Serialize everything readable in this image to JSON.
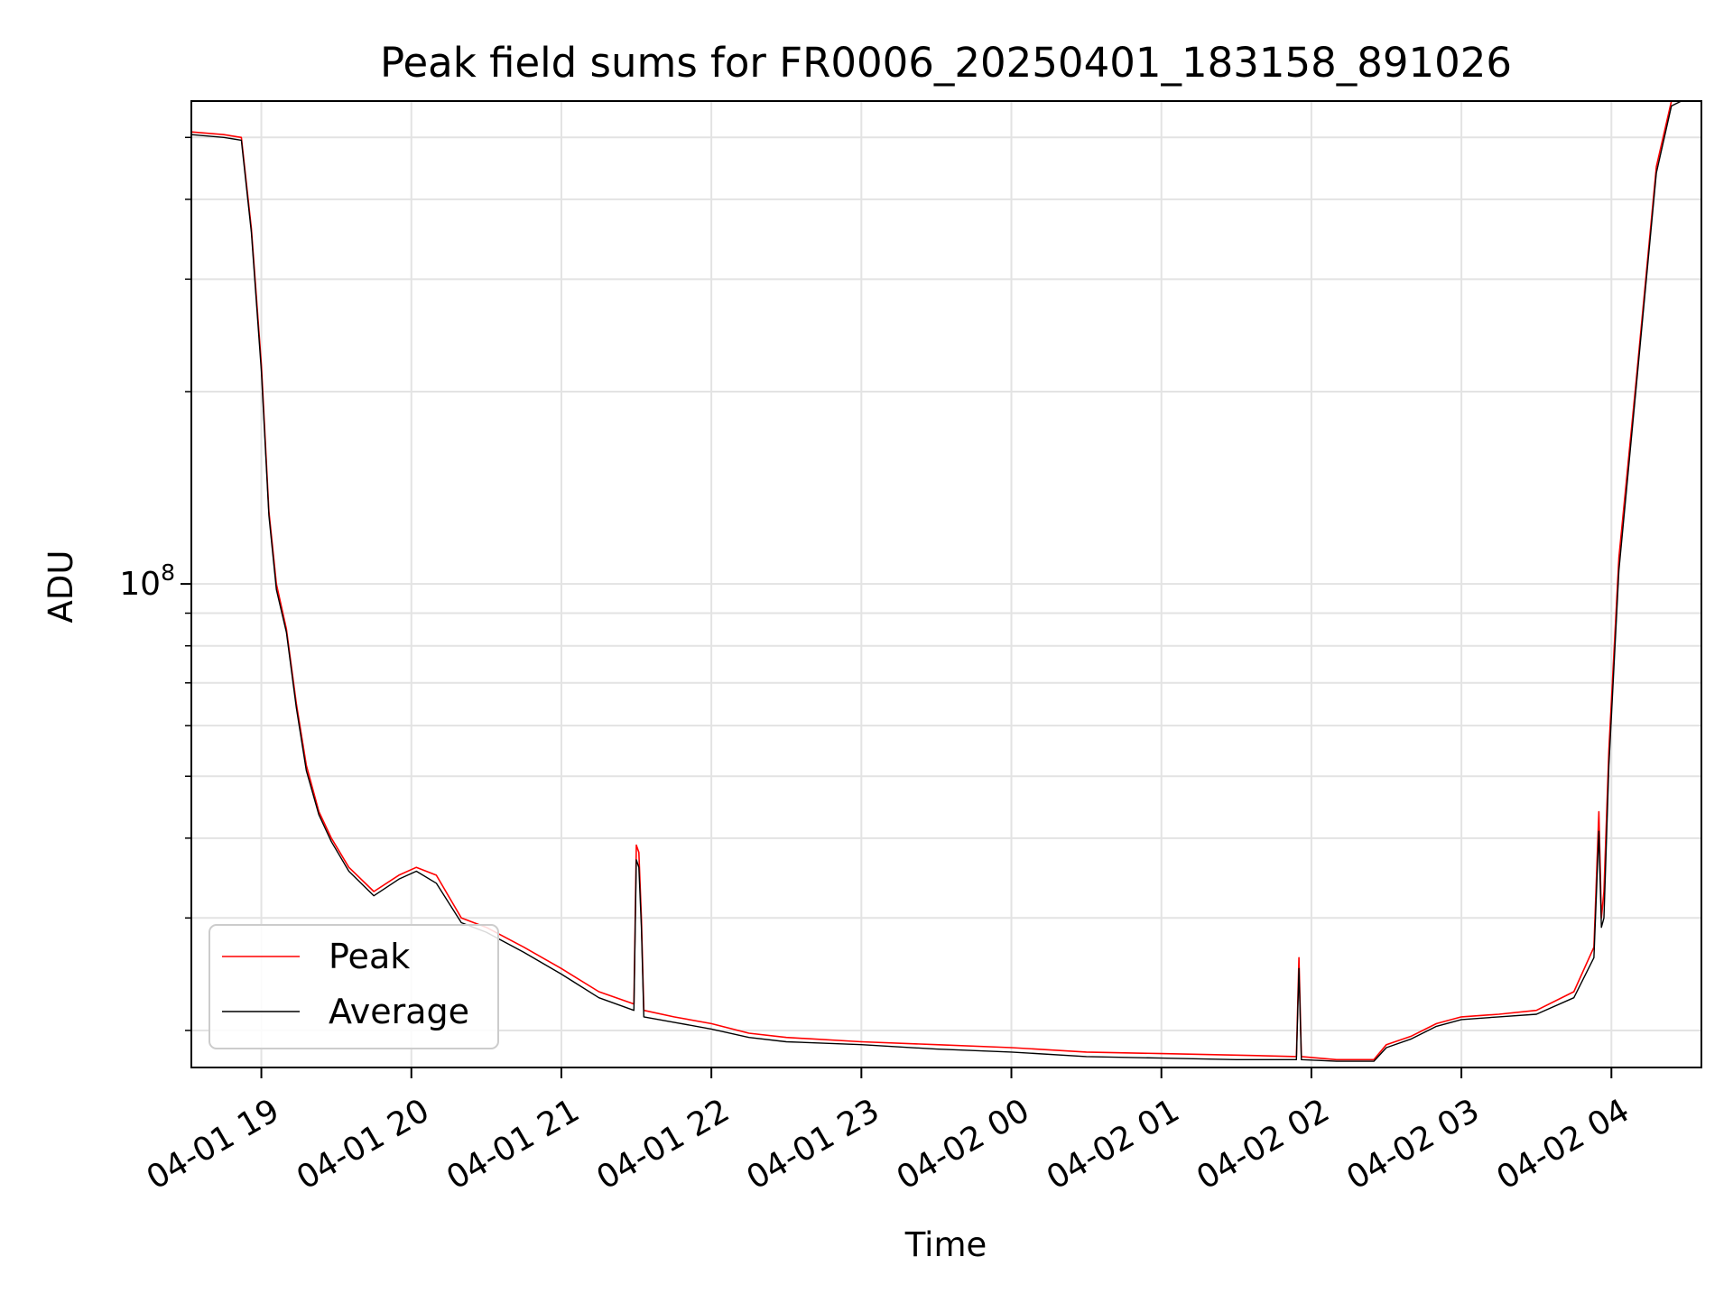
{
  "chart_data": {
    "type": "line",
    "title": "Peak field sums for FR0006_20250401_183158_891026",
    "xlabel": "Time",
    "ylabel": "ADU",
    "yscale": "log",
    "grid": true,
    "legend_position": "lower left",
    "x_range": [
      "2025-04-01 18:32",
      "2025-04-02 04:36"
    ],
    "y_range": [
      17500000,
      570000000
    ],
    "x_ticks": [
      "04-01 19",
      "04-01 20",
      "04-01 21",
      "04-01 22",
      "04-01 23",
      "04-02 00",
      "04-02 01",
      "04-02 02",
      "04-02 03",
      "04-02 04"
    ],
    "y_tick_base": "10",
    "y_tick_exp": "8",
    "y_tick_value": 100000000,
    "series": [
      {
        "name": "Peak",
        "color": "#ff0000",
        "x": [
          "2025-04-01 18:32",
          "2025-04-01 18:45",
          "2025-04-01 18:52",
          "2025-04-01 18:56",
          "2025-04-01 19:00",
          "2025-04-01 19:03",
          "2025-04-01 19:06",
          "2025-04-01 19:10",
          "2025-04-01 19:14",
          "2025-04-01 19:18",
          "2025-04-01 19:23",
          "2025-04-01 19:28",
          "2025-04-01 19:35",
          "2025-04-01 19:45",
          "2025-04-01 19:55",
          "2025-04-01 20:02",
          "2025-04-01 20:10",
          "2025-04-01 20:20",
          "2025-04-01 20:30",
          "2025-04-01 20:45",
          "2025-04-01 21:00",
          "2025-04-01 21:15",
          "2025-04-01 21:29",
          "2025-04-01 21:30",
          "2025-04-01 21:31",
          "2025-04-01 21:32",
          "2025-04-01 21:33",
          "2025-04-01 21:45",
          "2025-04-01 22:00",
          "2025-04-01 22:15",
          "2025-04-01 22:30",
          "2025-04-01 23:00",
          "2025-04-01 23:30",
          "2025-04-02 00:00",
          "2025-04-02 00:30",
          "2025-04-02 01:00",
          "2025-04-02 01:30",
          "2025-04-02 01:54",
          "2025-04-02 01:55",
          "2025-04-02 01:56",
          "2025-04-02 02:10",
          "2025-04-02 02:25",
          "2025-04-02 02:30",
          "2025-04-02 02:40",
          "2025-04-02 02:50",
          "2025-04-02 03:00",
          "2025-04-02 03:15",
          "2025-04-02 03:30",
          "2025-04-02 03:45",
          "2025-04-02 03:53",
          "2025-04-02 03:55",
          "2025-04-02 03:56",
          "2025-04-02 03:57",
          "2025-04-02 03:59",
          "2025-04-02 04:03",
          "2025-04-02 04:10",
          "2025-04-02 04:18",
          "2025-04-02 04:24",
          "2025-04-02 04:28"
        ],
        "y": [
          510000000,
          505000000,
          500000000,
          360000000,
          220000000,
          130000000,
          100000000,
          85000000,
          65000000,
          52000000,
          44000000,
          40000000,
          36000000,
          33000000,
          35000000,
          36000000,
          35000000,
          30000000,
          29000000,
          27000000,
          25000000,
          23000000,
          22000000,
          39000000,
          38000000,
          30000000,
          21500000,
          21000000,
          20500000,
          19800000,
          19500000,
          19200000,
          19000000,
          18800000,
          18500000,
          18400000,
          18300000,
          18200000,
          26000000,
          18200000,
          18000000,
          18000000,
          19000000,
          19600000,
          20500000,
          21000000,
          21200000,
          21500000,
          23000000,
          27000000,
          44000000,
          30000000,
          33000000,
          55000000,
          110000000,
          210000000,
          450000000,
          570000000,
          570000000
        ]
      },
      {
        "name": "Average",
        "color": "#000000",
        "x": [
          "2025-04-01 18:32",
          "2025-04-01 18:45",
          "2025-04-01 18:52",
          "2025-04-01 18:56",
          "2025-04-01 19:00",
          "2025-04-01 19:03",
          "2025-04-01 19:06",
          "2025-04-01 19:10",
          "2025-04-01 19:14",
          "2025-04-01 19:18",
          "2025-04-01 19:23",
          "2025-04-01 19:28",
          "2025-04-01 19:35",
          "2025-04-01 19:45",
          "2025-04-01 19:55",
          "2025-04-01 20:02",
          "2025-04-01 20:10",
          "2025-04-01 20:20",
          "2025-04-01 20:30",
          "2025-04-01 20:45",
          "2025-04-01 21:00",
          "2025-04-01 21:15",
          "2025-04-01 21:29",
          "2025-04-01 21:30",
          "2025-04-01 21:31",
          "2025-04-01 21:32",
          "2025-04-01 21:33",
          "2025-04-01 21:45",
          "2025-04-01 22:00",
          "2025-04-01 22:15",
          "2025-04-01 22:30",
          "2025-04-01 23:00",
          "2025-04-01 23:30",
          "2025-04-02 00:00",
          "2025-04-02 00:30",
          "2025-04-02 01:00",
          "2025-04-02 01:30",
          "2025-04-02 01:54",
          "2025-04-02 01:55",
          "2025-04-02 01:56",
          "2025-04-02 02:10",
          "2025-04-02 02:25",
          "2025-04-02 02:30",
          "2025-04-02 02:40",
          "2025-04-02 02:50",
          "2025-04-02 03:00",
          "2025-04-02 03:15",
          "2025-04-02 03:30",
          "2025-04-02 03:45",
          "2025-04-02 03:53",
          "2025-04-02 03:55",
          "2025-04-02 03:56",
          "2025-04-02 03:57",
          "2025-04-02 03:59",
          "2025-04-02 04:03",
          "2025-04-02 04:10",
          "2025-04-02 04:18",
          "2025-04-02 04:24",
          "2025-04-02 04:28"
        ],
        "y": [
          505000000,
          500000000,
          495000000,
          355000000,
          215000000,
          128000000,
          98000000,
          84000000,
          64000000,
          51000000,
          43500000,
          39500000,
          35500000,
          32500000,
          34500000,
          35500000,
          34000000,
          29500000,
          28500000,
          26500000,
          24500000,
          22500000,
          21500000,
          37000000,
          36000000,
          29000000,
          21000000,
          20600000,
          20100000,
          19500000,
          19200000,
          19000000,
          18700000,
          18500000,
          18200000,
          18100000,
          18000000,
          18000000,
          25000000,
          18000000,
          17900000,
          17900000,
          18800000,
          19400000,
          20300000,
          20800000,
          21000000,
          21200000,
          22500000,
          26000000,
          41000000,
          29000000,
          30000000,
          52000000,
          105000000,
          205000000,
          440000000,
          560000000,
          570000000
        ]
      }
    ]
  }
}
